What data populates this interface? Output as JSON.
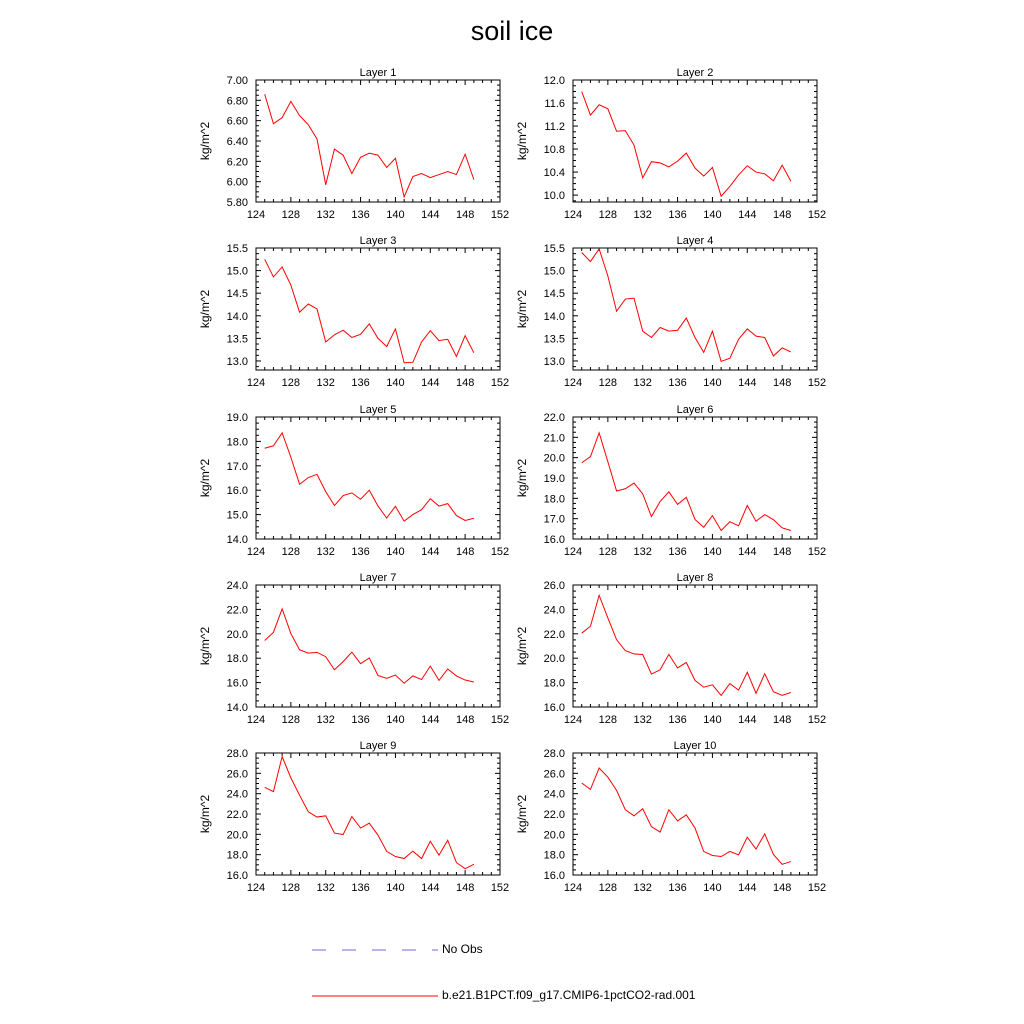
{
  "figure": {
    "title": "soil ice"
  },
  "legend": {
    "entries": [
      {
        "label": "No Obs",
        "color": "#6b6bd6",
        "style": "dashed"
      },
      {
        "label": "b.e21.B1PCT.f09_g17.CMIP6-1pctCO2-rad.001",
        "color": "#ff0000",
        "style": "solid"
      }
    ]
  },
  "chart_data": [
    {
      "type": "line",
      "title": "Layer 1",
      "ylabel": "kg/m^2",
      "xlim": [
        124,
        152
      ],
      "ylim": [
        5.8,
        7.0
      ],
      "xticks": [
        124,
        128,
        132,
        136,
        140,
        144,
        148,
        152
      ],
      "yticks": [
        "5.80",
        "6.00",
        "6.20",
        "6.40",
        "6.60",
        "6.80",
        "7.00"
      ],
      "x": [
        125,
        126,
        127,
        128,
        129,
        130,
        131,
        132,
        133,
        134,
        135,
        136,
        137,
        138,
        139,
        140,
        141,
        142,
        143,
        144,
        145,
        146,
        147,
        148,
        149
      ],
      "series": [
        {
          "name": "b.e21.B1PCT.f09_g17.CMIP6-1pctCO2-rad.001",
          "color": "#ff0000",
          "values": [
            6.86,
            6.57,
            6.63,
            6.79,
            6.65,
            6.56,
            6.42,
            5.97,
            6.32,
            6.26,
            6.08,
            6.24,
            6.28,
            6.26,
            6.14,
            6.23,
            5.85,
            6.05,
            6.08,
            6.04,
            6.07,
            6.1,
            6.07,
            6.27,
            6.02
          ]
        }
      ]
    },
    {
      "type": "line",
      "title": "Layer 2",
      "ylabel": "kg/m^2",
      "xlim": [
        124,
        152
      ],
      "ylim": [
        9.88,
        12.0
      ],
      "xticks": [
        124,
        128,
        132,
        136,
        140,
        144,
        148,
        152
      ],
      "yticks": [
        "10.0",
        "10.4",
        "10.8",
        "11.2",
        "11.6",
        "12.0"
      ],
      "x": [
        125,
        126,
        127,
        128,
        129,
        130,
        131,
        132,
        133,
        134,
        135,
        136,
        137,
        138,
        139,
        140,
        141,
        142,
        143,
        144,
        145,
        146,
        147,
        148,
        149
      ],
      "series": [
        {
          "name": "b.e21.B1PCT.f09_g17.CMIP6-1pctCO2-rad.001",
          "color": "#ff0000",
          "values": [
            11.8,
            11.39,
            11.57,
            11.5,
            11.11,
            11.12,
            10.87,
            10.3,
            10.58,
            10.56,
            10.49,
            10.59,
            10.73,
            10.47,
            10.33,
            10.48,
            9.98,
            10.15,
            10.35,
            10.51,
            10.4,
            10.37,
            10.25,
            10.52,
            10.24
          ]
        }
      ]
    },
    {
      "type": "line",
      "title": "Layer 3",
      "ylabel": "kg/m^2",
      "xlim": [
        124,
        152
      ],
      "ylim": [
        12.8,
        15.5
      ],
      "xticks": [
        124,
        128,
        132,
        136,
        140,
        144,
        148,
        152
      ],
      "yticks": [
        "13.0",
        "13.5",
        "14.0",
        "14.5",
        "15.0",
        "15.5"
      ],
      "x": [
        125,
        126,
        127,
        128,
        129,
        130,
        131,
        132,
        133,
        134,
        135,
        136,
        137,
        138,
        139,
        140,
        141,
        142,
        143,
        144,
        145,
        146,
        147,
        148,
        149
      ],
      "series": [
        {
          "name": "b.e21.B1PCT.f09_g17.CMIP6-1pctCO2-rad.001",
          "color": "#ff0000",
          "values": [
            15.25,
            14.86,
            15.08,
            14.68,
            14.08,
            14.26,
            14.15,
            13.42,
            13.58,
            13.68,
            13.52,
            13.59,
            13.82,
            13.5,
            13.32,
            13.71,
            12.96,
            12.97,
            13.42,
            13.67,
            13.45,
            13.48,
            13.1,
            13.56,
            13.18
          ]
        }
      ]
    },
    {
      "type": "line",
      "title": "Layer 4",
      "ylabel": "kg/m^2",
      "xlim": [
        124,
        152
      ],
      "ylim": [
        12.8,
        15.5
      ],
      "xticks": [
        124,
        128,
        132,
        136,
        140,
        144,
        148,
        152
      ],
      "yticks": [
        "13.0",
        "13.5",
        "14.0",
        "14.5",
        "15.0",
        "15.5"
      ],
      "x": [
        125,
        126,
        127,
        128,
        129,
        130,
        131,
        132,
        133,
        134,
        135,
        136,
        137,
        138,
        139,
        140,
        141,
        142,
        143,
        144,
        145,
        146,
        147,
        148,
        149
      ],
      "series": [
        {
          "name": "b.e21.B1PCT.f09_g17.CMIP6-1pctCO2-rad.001",
          "color": "#ff0000",
          "values": [
            15.4,
            15.2,
            15.48,
            14.88,
            14.1,
            14.37,
            14.39,
            13.66,
            13.52,
            13.74,
            13.66,
            13.68,
            13.95,
            13.52,
            13.19,
            13.66,
            12.99,
            13.06,
            13.48,
            13.71,
            13.55,
            13.52,
            13.11,
            13.29,
            13.2
          ]
        }
      ]
    },
    {
      "type": "line",
      "title": "Layer 5",
      "ylabel": "kg/m^2",
      "xlim": [
        124,
        152
      ],
      "ylim": [
        14.0,
        19.0
      ],
      "xticks": [
        124,
        128,
        132,
        136,
        140,
        144,
        148,
        152
      ],
      "yticks": [
        "14.0",
        "15.0",
        "16.0",
        "17.0",
        "18.0",
        "19.0"
      ],
      "x": [
        125,
        126,
        127,
        128,
        129,
        130,
        131,
        132,
        133,
        134,
        135,
        136,
        137,
        138,
        139,
        140,
        141,
        142,
        143,
        144,
        145,
        146,
        147,
        148,
        149
      ],
      "series": [
        {
          "name": "b.e21.B1PCT.f09_g17.CMIP6-1pctCO2-rad.001",
          "color": "#ff0000",
          "values": [
            17.72,
            17.82,
            18.35,
            17.35,
            16.24,
            16.52,
            16.65,
            15.94,
            15.37,
            15.78,
            15.89,
            15.63,
            16.0,
            15.35,
            14.86,
            15.34,
            14.73,
            15.0,
            15.2,
            15.65,
            15.35,
            15.45,
            14.96,
            14.76,
            14.85
          ]
        }
      ]
    },
    {
      "type": "line",
      "title": "Layer 6",
      "ylabel": "kg/m^2",
      "xlim": [
        124,
        152
      ],
      "ylim": [
        16.0,
        22.0
      ],
      "xticks": [
        124,
        128,
        132,
        136,
        140,
        144,
        148,
        152
      ],
      "yticks": [
        "16.0",
        "17.0",
        "18.0",
        "19.0",
        "20.0",
        "21.0",
        "22.0"
      ],
      "x": [
        125,
        126,
        127,
        128,
        129,
        130,
        131,
        132,
        133,
        134,
        135,
        136,
        137,
        138,
        139,
        140,
        141,
        142,
        143,
        144,
        145,
        146,
        147,
        148,
        149
      ],
      "series": [
        {
          "name": "b.e21.B1PCT.f09_g17.CMIP6-1pctCO2-rad.001",
          "color": "#ff0000",
          "values": [
            19.75,
            20.05,
            21.22,
            19.8,
            18.36,
            18.47,
            18.75,
            18.22,
            17.1,
            17.85,
            18.32,
            17.7,
            18.05,
            16.96,
            16.58,
            17.15,
            16.42,
            16.85,
            16.65,
            17.65,
            16.87,
            17.2,
            16.95,
            16.55,
            16.42
          ]
        }
      ]
    },
    {
      "type": "line",
      "title": "Layer 7",
      "ylabel": "kg/m^2",
      "xlim": [
        124,
        152
      ],
      "ylim": [
        14.0,
        24.0
      ],
      "xticks": [
        124,
        128,
        132,
        136,
        140,
        144,
        148,
        152
      ],
      "yticks": [
        "14.0",
        "16.0",
        "18.0",
        "20.0",
        "22.0",
        "24.0"
      ],
      "x": [
        125,
        126,
        127,
        128,
        129,
        130,
        131,
        132,
        133,
        134,
        135,
        136,
        137,
        138,
        139,
        140,
        141,
        142,
        143,
        144,
        145,
        146,
        147,
        148,
        149
      ],
      "series": [
        {
          "name": "b.e21.B1PCT.f09_g17.CMIP6-1pctCO2-rad.001",
          "color": "#ff0000",
          "values": [
            19.45,
            20.12,
            22.05,
            20.02,
            18.68,
            18.42,
            18.48,
            18.12,
            17.05,
            17.72,
            18.5,
            17.55,
            18.02,
            16.58,
            16.35,
            16.62,
            15.95,
            16.55,
            16.25,
            17.35,
            16.18,
            17.12,
            16.55,
            16.21,
            16.05
          ]
        }
      ]
    },
    {
      "type": "line",
      "title": "Layer 8",
      "ylabel": "kg/m^2",
      "xlim": [
        124,
        152
      ],
      "ylim": [
        16.0,
        26.0
      ],
      "xticks": [
        124,
        128,
        132,
        136,
        140,
        144,
        148,
        152
      ],
      "yticks": [
        "16.0",
        "18.0",
        "20.0",
        "22.0",
        "24.0",
        "26.0"
      ],
      "x": [
        125,
        126,
        127,
        128,
        129,
        130,
        131,
        132,
        133,
        134,
        135,
        136,
        137,
        138,
        139,
        140,
        141,
        142,
        143,
        144,
        145,
        146,
        147,
        148,
        149
      ],
      "series": [
        {
          "name": "b.e21.B1PCT.f09_g17.CMIP6-1pctCO2-rad.001",
          "color": "#ff0000",
          "values": [
            22.05,
            22.62,
            25.15,
            23.3,
            21.52,
            20.62,
            20.35,
            20.3,
            18.7,
            19.05,
            20.32,
            19.2,
            19.65,
            18.18,
            17.62,
            17.82,
            16.95,
            17.92,
            17.38,
            18.85,
            17.12,
            18.72,
            17.25,
            16.96,
            17.19
          ]
        }
      ]
    },
    {
      "type": "line",
      "title": "Layer 9",
      "ylabel": "kg/m^2",
      "xlim": [
        124,
        152
      ],
      "ylim": [
        16.0,
        28.0
      ],
      "xticks": [
        124,
        128,
        132,
        136,
        140,
        144,
        148,
        152
      ],
      "yticks": [
        "16.0",
        "18.0",
        "20.0",
        "22.0",
        "24.0",
        "26.0",
        "28.0"
      ],
      "x": [
        125,
        126,
        127,
        128,
        129,
        130,
        131,
        132,
        133,
        134,
        135,
        136,
        137,
        138,
        139,
        140,
        141,
        142,
        143,
        144,
        145,
        146,
        147,
        148,
        149
      ],
      "series": [
        {
          "name": "b.e21.B1PCT.f09_g17.CMIP6-1pctCO2-rad.001",
          "color": "#ff0000",
          "values": [
            24.62,
            24.2,
            27.65,
            25.55,
            23.85,
            22.22,
            21.7,
            21.82,
            20.12,
            19.98,
            21.75,
            20.62,
            21.1,
            19.92,
            18.32,
            17.82,
            17.62,
            18.35,
            17.62,
            19.32,
            17.95,
            19.42,
            17.22,
            16.62,
            17.05
          ]
        }
      ]
    },
    {
      "type": "line",
      "title": "Layer 10",
      "ylabel": "kg/m^2",
      "xlim": [
        124,
        152
      ],
      "ylim": [
        16.0,
        28.0
      ],
      "xticks": [
        124,
        128,
        132,
        136,
        140,
        144,
        148,
        152
      ],
      "yticks": [
        "16.0",
        "18.0",
        "20.0",
        "22.0",
        "24.0",
        "26.0",
        "28.0"
      ],
      "x": [
        125,
        126,
        127,
        128,
        129,
        130,
        131,
        132,
        133,
        134,
        135,
        136,
        137,
        138,
        139,
        140,
        141,
        142,
        143,
        144,
        145,
        146,
        147,
        148,
        149
      ],
      "series": [
        {
          "name": "b.e21.B1PCT.f09_g17.CMIP6-1pctCO2-rad.001",
          "color": "#ff0000",
          "values": [
            25.05,
            24.42,
            26.52,
            25.62,
            24.32,
            22.42,
            21.82,
            22.52,
            20.75,
            20.22,
            22.42,
            21.32,
            21.92,
            20.62,
            18.32,
            17.92,
            17.82,
            18.32,
            17.98,
            19.72,
            18.55,
            20.05,
            18.02,
            17.05,
            17.32
          ]
        }
      ]
    }
  ]
}
